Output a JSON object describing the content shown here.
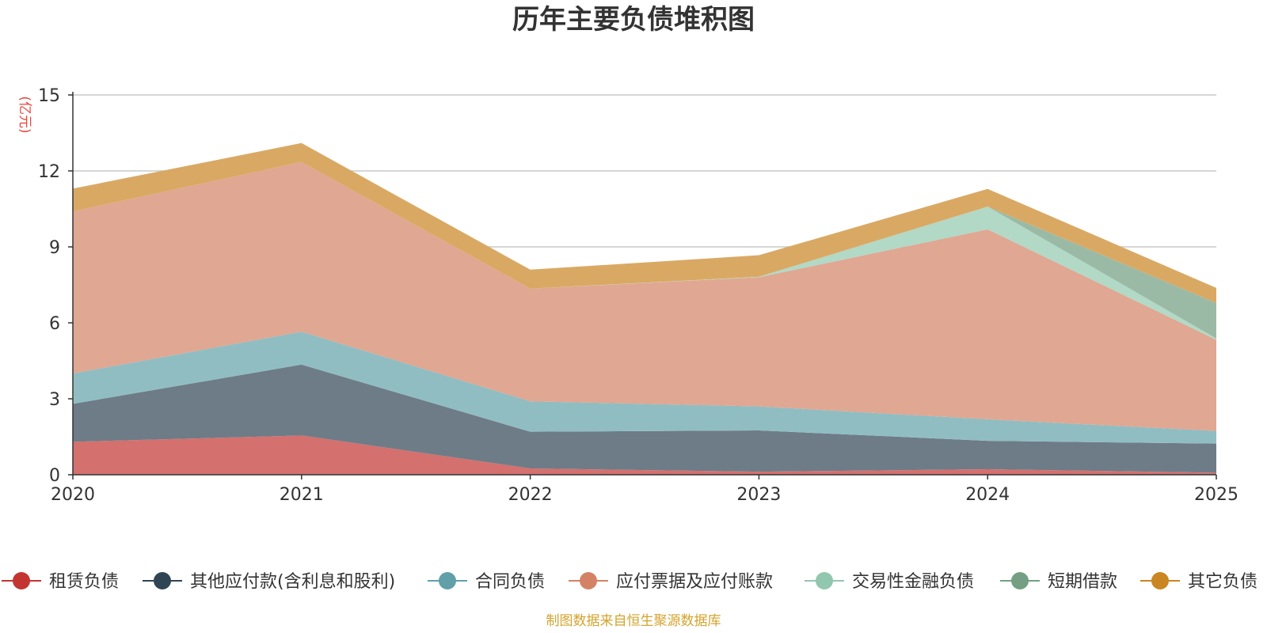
{
  "chart_data": {
    "type": "area",
    "stacked": true,
    "title": "历年主要负债堆积图",
    "ylabel": "(亿元)",
    "ylim": [
      0,
      15
    ],
    "yticks": [
      0,
      3,
      6,
      9,
      12,
      15
    ],
    "grid": true,
    "legend_position": "bottom",
    "categories": [
      "2020",
      "2021",
      "2022",
      "2023",
      "2024",
      "2025"
    ],
    "series": [
      {
        "name": "租赁负债",
        "color": "#c23531",
        "fill": "#d4706e",
        "values": [
          1.3,
          1.55,
          0.25,
          0.12,
          0.22,
          0.08
        ]
      },
      {
        "name": "其他应付款(含利息和股利)",
        "color": "#2f4554",
        "fill": "#6e7c87",
        "values": [
          1.5,
          2.8,
          1.45,
          1.63,
          1.12,
          1.15
        ]
      },
      {
        "name": "合同负债",
        "color": "#61a0a8",
        "fill": "#90bdc2",
        "values": [
          1.2,
          1.3,
          1.2,
          0.95,
          0.85,
          0.5
        ]
      },
      {
        "name": "应付票据及应付账款",
        "color": "#d48265",
        "fill": "#e0a792",
        "values": [
          6.4,
          6.7,
          4.45,
          5.1,
          7.5,
          3.6
        ]
      },
      {
        "name": "交易性金融负债",
        "color": "#91c7ae",
        "fill": "#b2d8c6",
        "values": [
          0,
          0,
          0,
          0.02,
          0.9,
          0.05
        ]
      },
      {
        "name": "短期借款",
        "color": "#749f83",
        "fill": "#9bbaa6",
        "values": [
          0,
          0,
          0,
          0,
          0,
          1.4
        ]
      },
      {
        "name": "其它负债",
        "color": "#ca8622",
        "fill": "#d9a964",
        "values": [
          0.9,
          0.75,
          0.75,
          0.85,
          0.7,
          0.6
        ]
      }
    ]
  },
  "footer": {
    "source": "制图数据来自恒生聚源数据库"
  }
}
